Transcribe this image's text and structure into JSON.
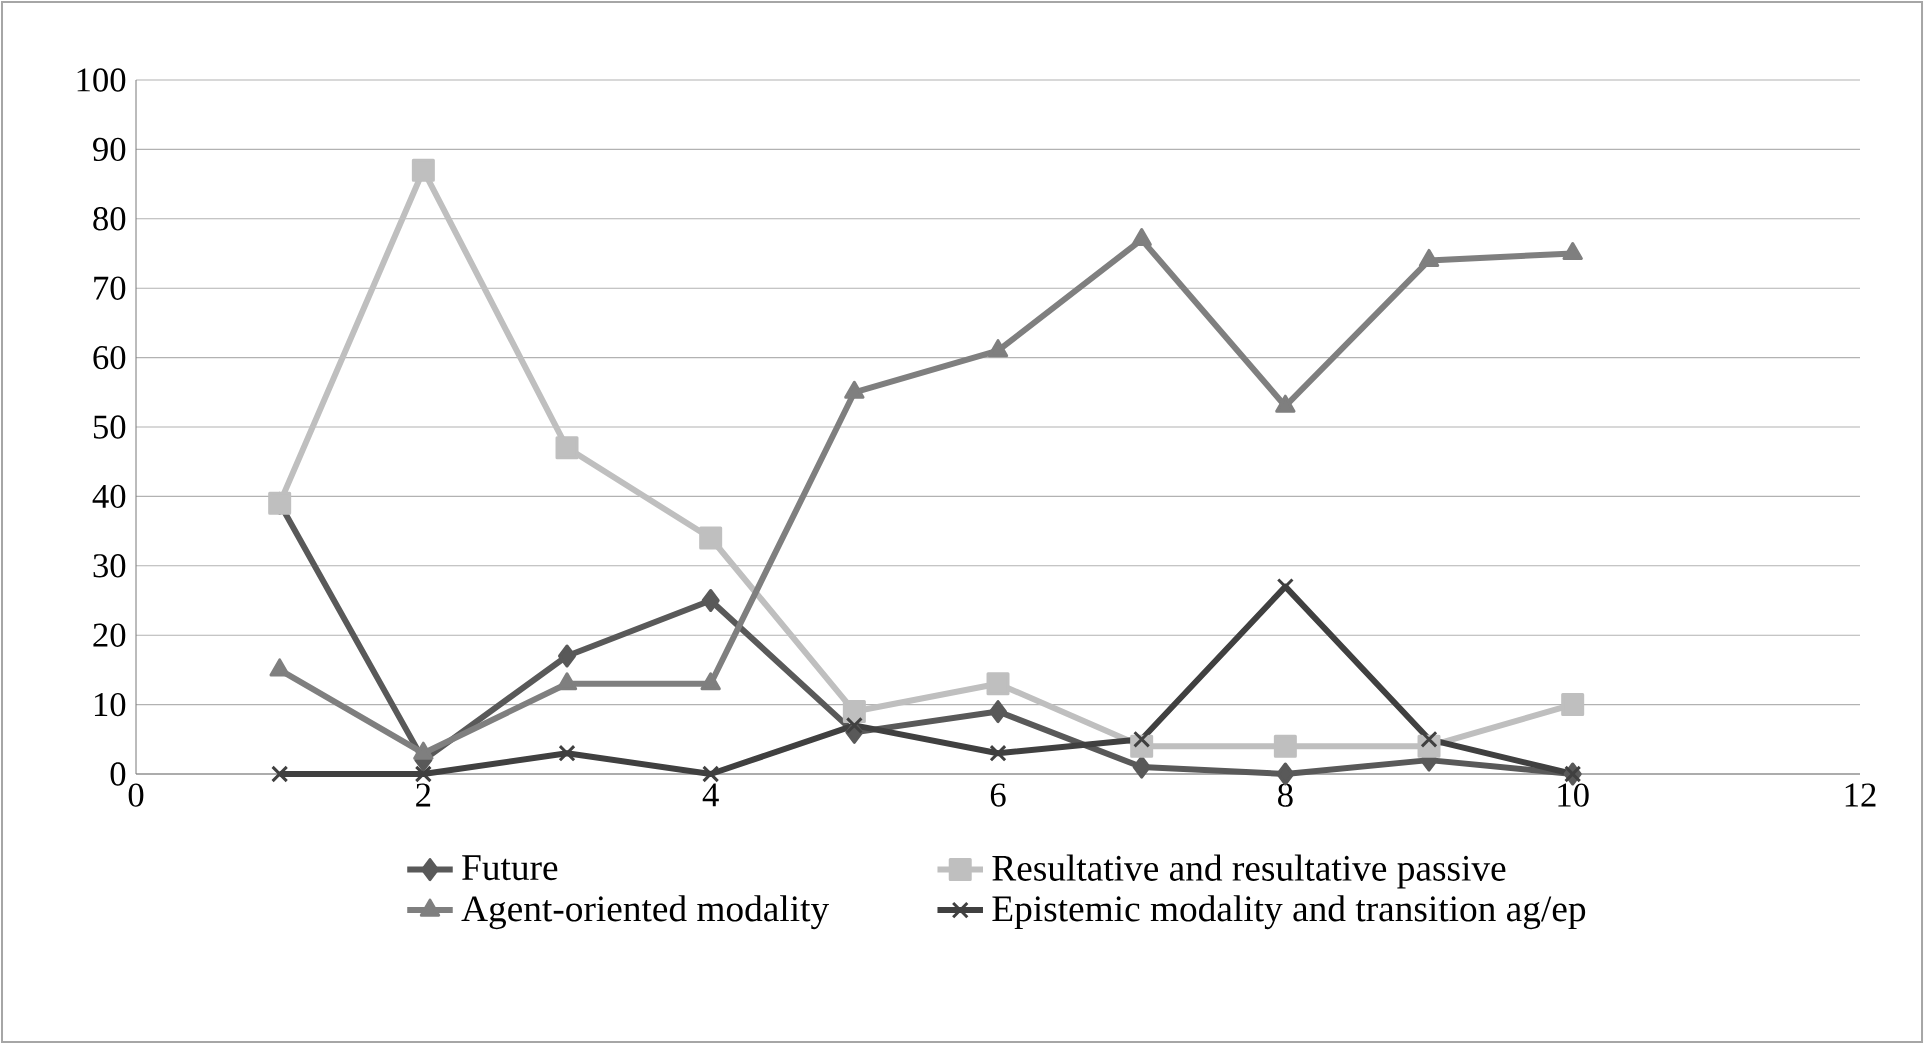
{
  "chart_data": {
    "type": "line",
    "x": [
      1,
      2,
      3,
      4,
      5,
      6,
      7,
      8,
      9,
      10
    ],
    "xlim": [
      0,
      12
    ],
    "xticks": [
      0,
      2,
      4,
      6,
      8,
      10,
      12
    ],
    "ylim": [
      0,
      100
    ],
    "yticks": [
      0,
      10,
      20,
      30,
      40,
      50,
      60,
      70,
      80,
      90,
      100
    ],
    "grid": "y",
    "legend": "bottom",
    "line_style": "solid",
    "series": [
      {
        "name": "Future",
        "color": "#595959",
        "marker": "diamond",
        "values": [
          39,
          2,
          17,
          25,
          6,
          9,
          1,
          0,
          2,
          0
        ]
      },
      {
        "name": "Resultative and resultative passive",
        "color": "#bfbfbf",
        "marker": "square",
        "values": [
          39,
          87,
          47,
          34,
          9,
          13,
          4,
          4,
          4,
          10
        ]
      },
      {
        "name": "Agent-oriented modality",
        "color": "#7f7f7f",
        "marker": "triangle",
        "values": [
          15,
          3,
          13,
          13,
          55,
          61,
          77,
          53,
          74,
          75
        ]
      },
      {
        "name": "Epistemic modality and transition ag/ep",
        "color": "#404040",
        "marker": "cross",
        "values": [
          0,
          0,
          3,
          0,
          7,
          3,
          5,
          27,
          5,
          0
        ]
      }
    ]
  }
}
